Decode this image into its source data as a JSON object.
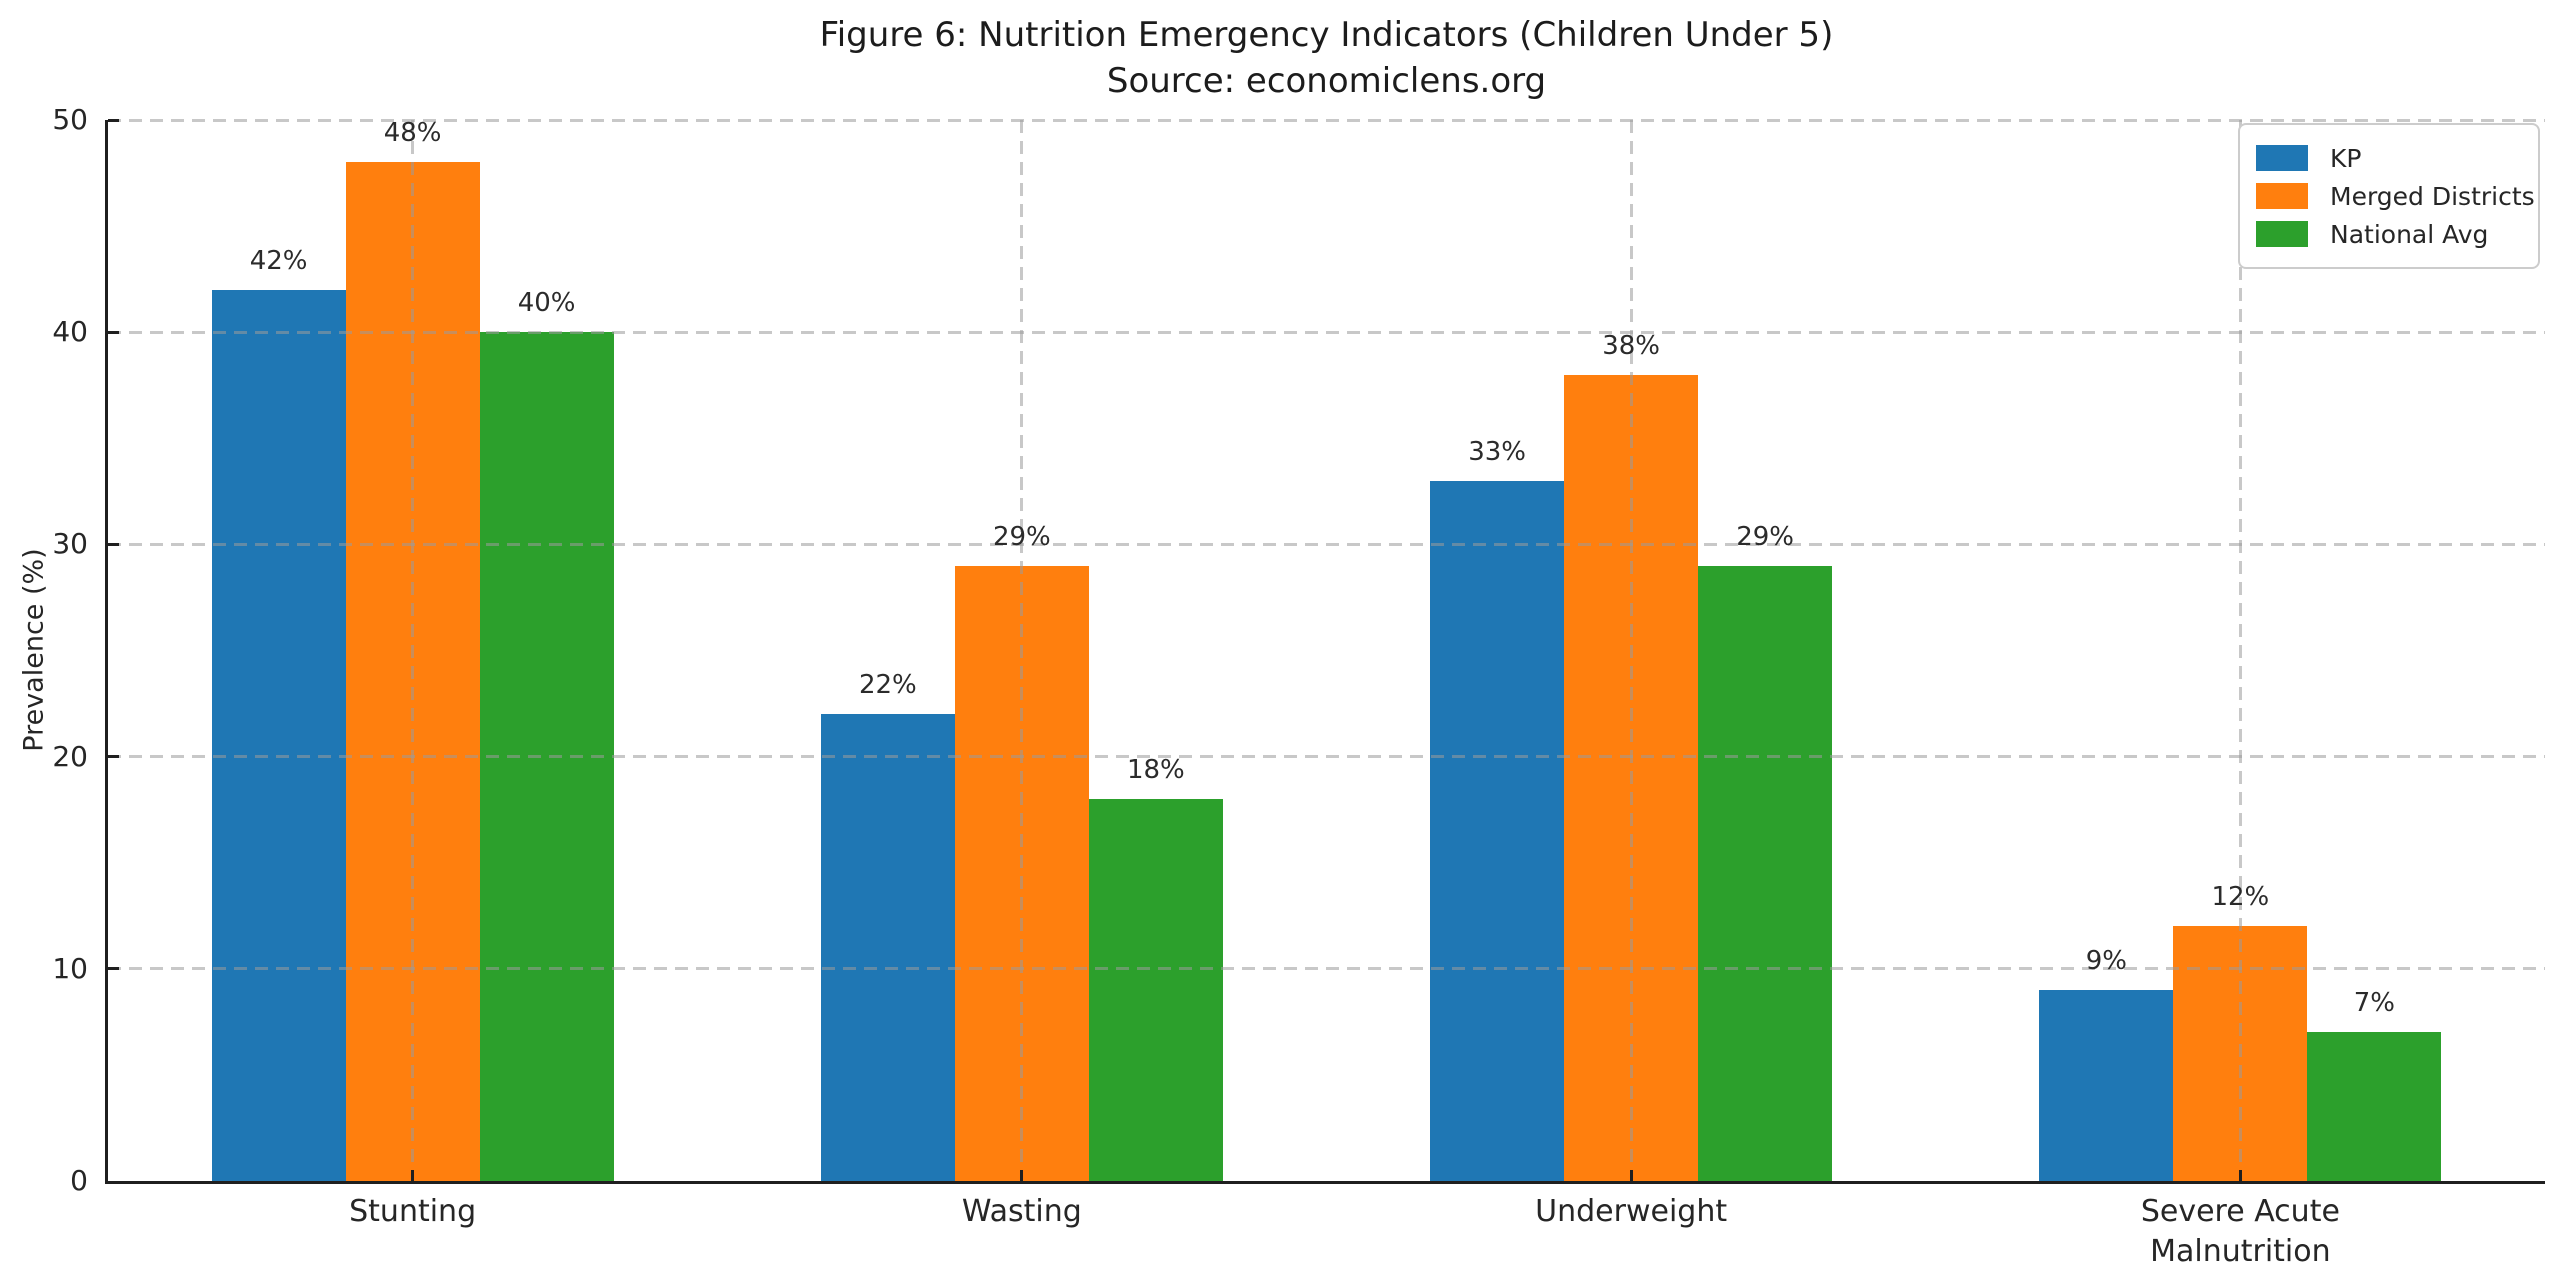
{
  "figure": {
    "title": "Figure 6: Nutrition Emergency Indicators (Children Under 5)",
    "subtitle": "Source: economiclens.org"
  },
  "chart_data": {
    "type": "bar",
    "title": "Figure 6: Nutrition Emergency Indicators (Children Under 5)",
    "subtitle": "Source: economiclens.org",
    "xlabel": "",
    "ylabel": "Prevalence (%)",
    "ylim": [
      0,
      50
    ],
    "yticks": [
      0,
      10,
      20,
      30,
      40,
      50
    ],
    "categories": [
      "Stunting",
      "Wasting",
      "Underweight",
      "Severe Acute Malnutrition"
    ],
    "categories_display_lines": [
      [
        "Stunting"
      ],
      [
        "Wasting"
      ],
      [
        "Underweight"
      ],
      [
        "Severe Acute",
        "Malnutrition"
      ]
    ],
    "series": [
      {
        "name": "KP",
        "color": "#1f77b4",
        "values": [
          42,
          22,
          33,
          9
        ],
        "labels": [
          "42%",
          "22%",
          "33%",
          "9%"
        ]
      },
      {
        "name": "Merged Districts",
        "color": "#ff7f0e",
        "values": [
          48,
          29,
          38,
          12
        ],
        "labels": [
          "48%",
          "29%",
          "38%",
          "12%"
        ]
      },
      {
        "name": "National Avg",
        "color": "#2ca02c",
        "values": [
          40,
          18,
          29,
          7
        ],
        "labels": [
          "40%",
          "18%",
          "29%",
          "7%"
        ]
      }
    ],
    "legend_position": "upper right",
    "grid": "dashed gray, horizontal and vertical, drawn over bars",
    "gridline_color": "#b0b0b0",
    "spine_color": "#1f1f1f",
    "tick_direction": "in",
    "bar_value_suffix": "%"
  }
}
